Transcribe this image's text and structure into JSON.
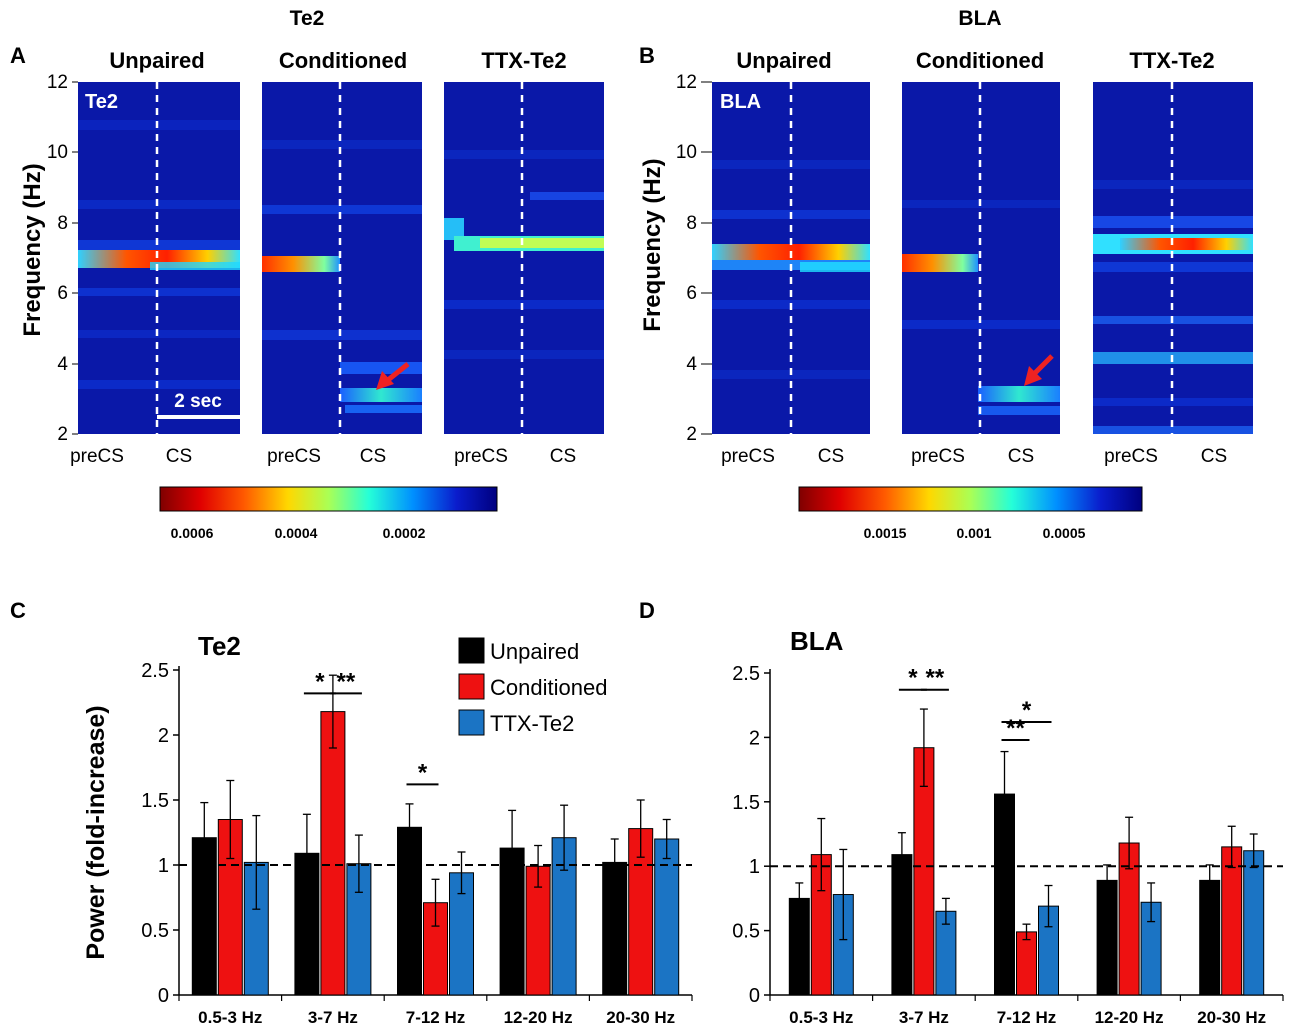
{
  "panels": {
    "A": {
      "letter": "A",
      "region": "Te2",
      "ylabel": "Frequency (Hz)",
      "yticks": [
        "12",
        "10",
        "8",
        "6",
        "4",
        "2"
      ],
      "plots": [
        {
          "title": "Unpaired",
          "inset": "Te2",
          "xleft": "preCS",
          "xright": "CS"
        },
        {
          "title": "Conditioned",
          "inset": "",
          "xleft": "preCS",
          "xright": "CS"
        },
        {
          "title": "TTX-Te2",
          "inset": "",
          "xleft": "preCS",
          "xright": "CS"
        }
      ],
      "scalebar": "2 sec",
      "colorbar_ticks": [
        "0.0006",
        "0.0004",
        "0.0002"
      ]
    },
    "B": {
      "letter": "B",
      "region": "BLA",
      "ylabel": "Frequency (Hz)",
      "yticks": [
        "12",
        "10",
        "8",
        "6",
        "4",
        "2"
      ],
      "plots": [
        {
          "title": "Unpaired",
          "inset": "BLA",
          "xleft": "preCS",
          "xright": "CS"
        },
        {
          "title": "Conditioned",
          "inset": "",
          "xleft": "preCS",
          "xright": "CS"
        },
        {
          "title": "TTX-Te2",
          "inset": "",
          "xleft": "preCS",
          "xright": "CS"
        }
      ],
      "colorbar_ticks": [
        "0.0015",
        "0.001",
        "0.0005"
      ]
    },
    "C": {
      "letter": "C"
    },
    "D": {
      "letter": "D"
    }
  },
  "colors": {
    "unpaired": "#000000",
    "conditioned": "#ee1111",
    "ttx": "#1b74c4",
    "heat_bg": "#0a18a8",
    "arrow": "#ee2222"
  },
  "chart_data": [
    {
      "type": "heatmap",
      "title": "Te2",
      "ylabel": "Frequency (Hz)",
      "ylim": [
        2,
        12
      ],
      "conditions": [
        "Unpaired",
        "Conditioned",
        "TTX-Te2"
      ],
      "x": [
        "preCS",
        "CS"
      ],
      "colorbar_ticks": [
        0.0006,
        0.0004,
        0.0002
      ],
      "dominant_band_hz": {
        "Unpaired": 7.0,
        "Conditioned": 6.8,
        "TTX-Te2": 7.3
      },
      "cs_band_hz": {
        "Conditioned": 3.1
      }
    },
    {
      "type": "heatmap",
      "title": "BLA",
      "ylabel": "Frequency (Hz)",
      "ylim": [
        2,
        12
      ],
      "conditions": [
        "Unpaired",
        "Conditioned",
        "TTX-Te2"
      ],
      "x": [
        "preCS",
        "CS"
      ],
      "colorbar_ticks": [
        0.0015,
        0.001,
        0.0005
      ],
      "dominant_band_hz": {
        "Unpaired": 7.1,
        "Conditioned": 6.9,
        "TTX-Te2": 7.3
      },
      "cs_band_hz": {
        "Conditioned": 3.0
      }
    },
    {
      "type": "bar",
      "title": "Te2",
      "ylabel": "Power (fold-increase)",
      "ylim": [
        0,
        2.5
      ],
      "yticks": [
        "0",
        "0.5",
        "1",
        "1.5",
        "2",
        "2.5"
      ],
      "categories": [
        "0.5-3 Hz",
        "3-7 Hz",
        "7-12 Hz",
        "12-20 Hz",
        "20-30 Hz"
      ],
      "baseline": 1,
      "series": [
        {
          "name": "Unpaired",
          "values": [
            1.21,
            1.09,
            1.29,
            1.13,
            1.02
          ],
          "errors": [
            0.27,
            0.3,
            0.18,
            0.29,
            0.18
          ]
        },
        {
          "name": "Conditioned",
          "values": [
            1.35,
            2.18,
            0.71,
            0.99,
            1.28
          ],
          "errors": [
            0.3,
            0.28,
            0.18,
            0.16,
            0.22
          ]
        },
        {
          "name": "TTX-Te2",
          "values": [
            1.02,
            1.01,
            0.94,
            1.21,
            1.2
          ],
          "errors": [
            0.36,
            0.22,
            0.16,
            0.25,
            0.15
          ]
        }
      ],
      "significance": [
        {
          "category": 1,
          "from": 0,
          "to": 1,
          "label": "*",
          "level": 2.32
        },
        {
          "category": 1,
          "from": 1,
          "to": 2,
          "label": "**",
          "level": 2.32
        },
        {
          "category": 2,
          "from": 0,
          "to": 1,
          "label": "*",
          "level": 1.62
        }
      ]
    },
    {
      "type": "bar",
      "title": "BLA",
      "ylabel": "Power (fold-increase)",
      "ylim": [
        0,
        2.5
      ],
      "yticks": [
        "0",
        "0.5",
        "1",
        "1.5",
        "2",
        "2.5"
      ],
      "categories": [
        "0.5-3 Hz",
        "3-7 Hz",
        "7-12 Hz",
        "12-20 Hz",
        "20-30 Hz"
      ],
      "baseline": 1,
      "series": [
        {
          "name": "Unpaired",
          "values": [
            0.75,
            1.09,
            1.56,
            0.89,
            0.89
          ],
          "errors": [
            0.12,
            0.17,
            0.33,
            0.12,
            0.12
          ]
        },
        {
          "name": "Conditioned",
          "values": [
            1.09,
            1.92,
            0.49,
            1.18,
            1.15
          ],
          "errors": [
            0.28,
            0.3,
            0.06,
            0.2,
            0.16
          ]
        },
        {
          "name": "TTX-Te2",
          "values": [
            0.78,
            0.65,
            0.69,
            0.72,
            1.12
          ],
          "errors": [
            0.35,
            0.1,
            0.16,
            0.15,
            0.13
          ]
        }
      ],
      "significance": [
        {
          "category": 1,
          "from": 0,
          "to": 1,
          "label": "*",
          "level": 2.37
        },
        {
          "category": 1,
          "from": 1,
          "to": 2,
          "label": "**",
          "level": 2.37
        },
        {
          "category": 2,
          "from": 0,
          "to": 2,
          "label": "*",
          "level": 2.12
        },
        {
          "category": 2,
          "from": 0,
          "to": 1,
          "label": "**",
          "level": 1.98
        }
      ]
    }
  ]
}
